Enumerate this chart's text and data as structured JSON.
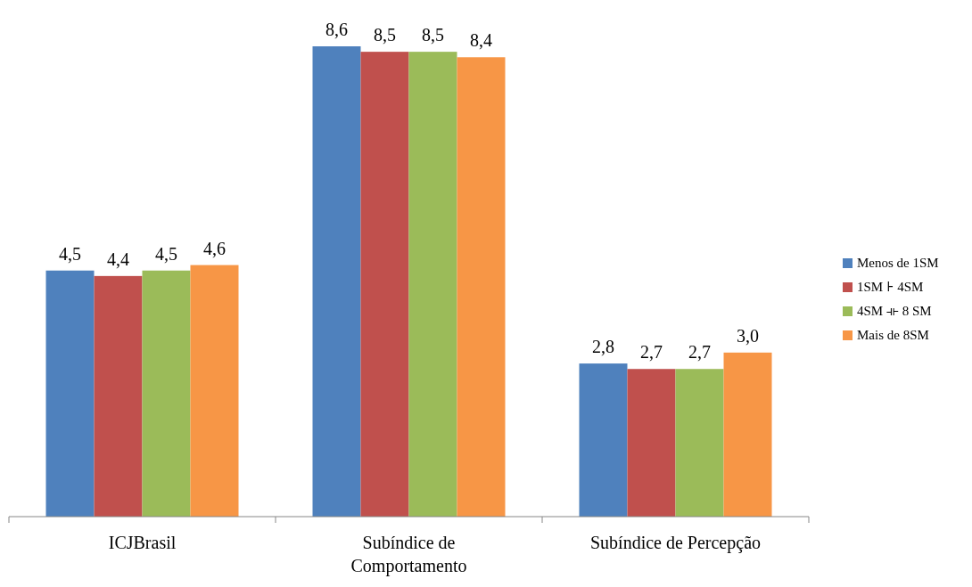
{
  "chart_data": {
    "type": "bar",
    "categories": [
      "ICJBrasil",
      "Subíndice de Comportamento",
      "Subíndice de Percepção"
    ],
    "series": [
      {
        "name": "Menos de 1SM",
        "color": "#4f81bd",
        "values": [
          4.5,
          8.6,
          2.8
        ],
        "value_labels": [
          "4,5",
          "8,6",
          "2,8"
        ]
      },
      {
        "name": "1SM ⊦ 4SM",
        "color": "#c0504d",
        "values": [
          4.4,
          8.5,
          2.7
        ],
        "value_labels": [
          "4,4",
          "8,5",
          "2,7"
        ]
      },
      {
        "name": "4SM ⟛ 8 SM",
        "color": "#9bbb59",
        "values": [
          4.5,
          8.5,
          2.7
        ],
        "value_labels": [
          "4,5",
          "8,5",
          "2,7"
        ]
      },
      {
        "name": "Mais de 8SM",
        "color": "#f79646",
        "values": [
          4.6,
          8.4,
          3.0
        ],
        "value_labels": [
          "4,6",
          "8,4",
          "3,0"
        ]
      }
    ],
    "legend": "right"
  }
}
